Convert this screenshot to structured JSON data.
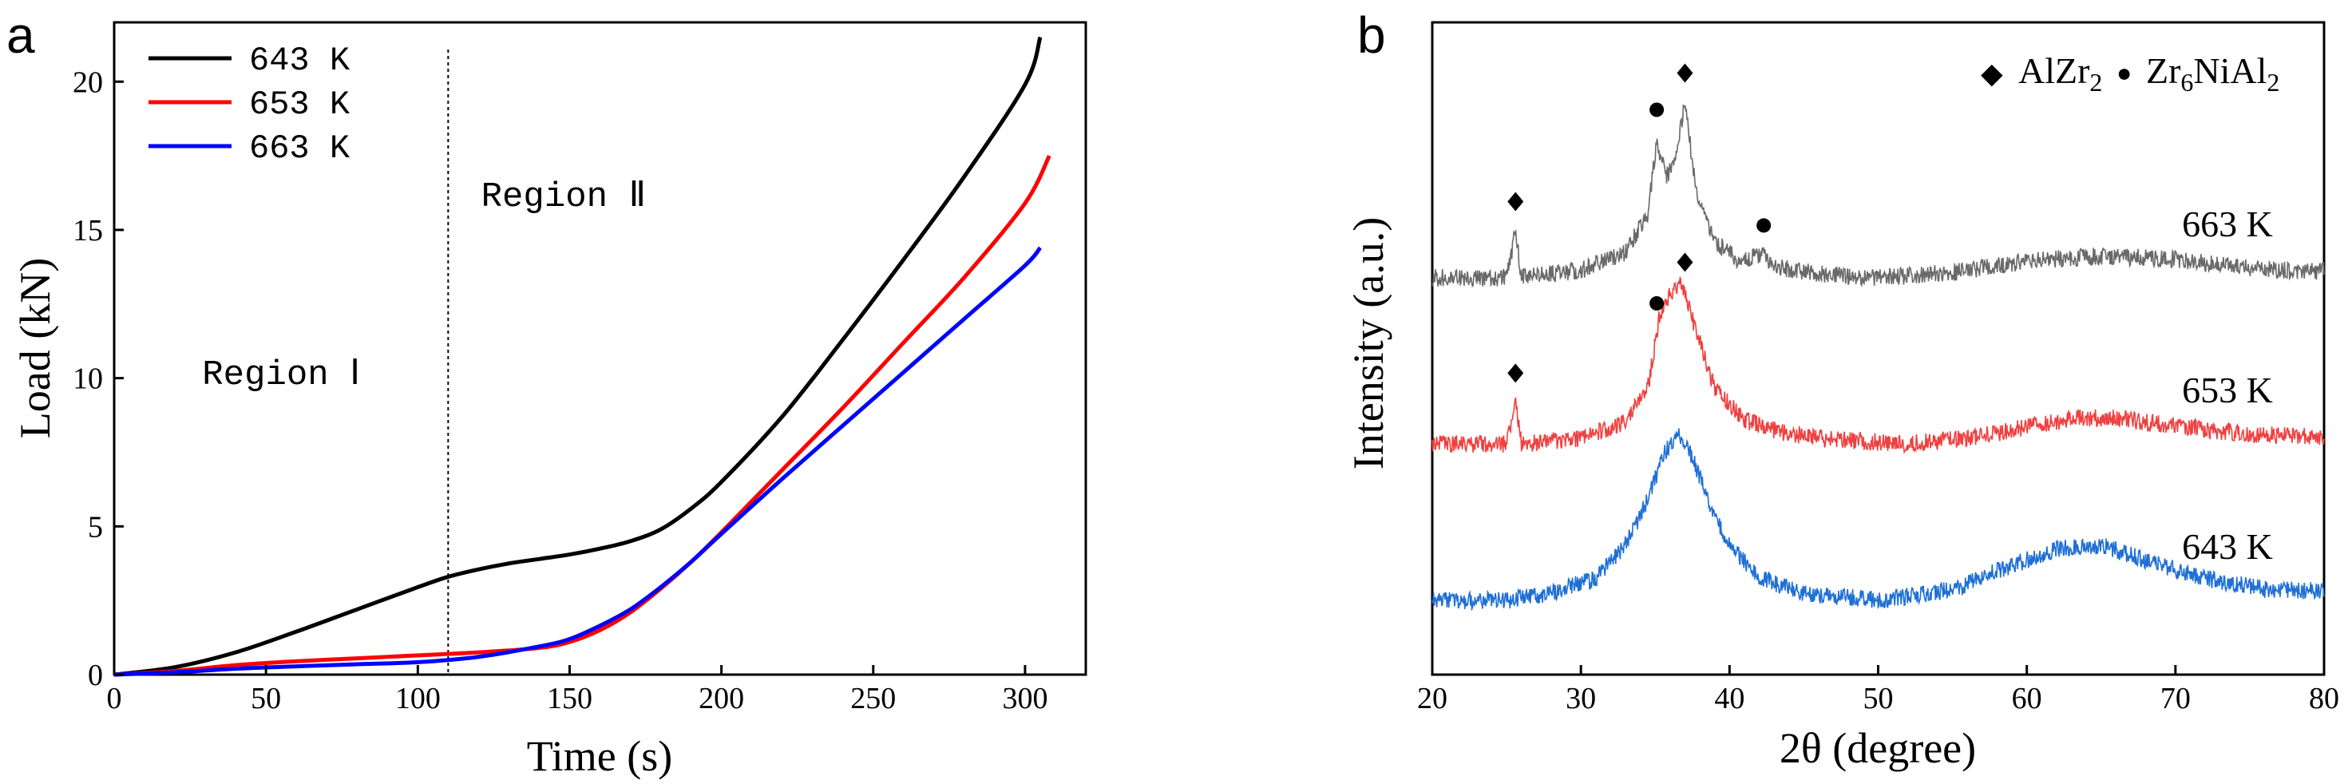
{
  "chart_data": [
    {
      "panel": "a",
      "type": "line",
      "title": "",
      "xlabel": "Time (s)",
      "ylabel": "Load (kN)",
      "xlim": [
        0,
        320
      ],
      "ylim": [
        0,
        22
      ],
      "xticks": [
        0,
        50,
        100,
        150,
        200,
        250,
        300
      ],
      "yticks": [
        0,
        5,
        10,
        15,
        20
      ],
      "grid": false,
      "legend": "top-left",
      "series": [
        {
          "name": "643 K",
          "color": "#000000",
          "x": [
            0,
            20,
            40,
            60,
            80,
            100,
            110,
            120,
            130,
            140,
            150,
            160,
            170,
            180,
            190,
            200,
            220,
            240,
            260,
            280,
            300,
            305
          ],
          "y": [
            0,
            0.25,
            0.75,
            1.45,
            2.2,
            2.95,
            3.3,
            3.55,
            3.75,
            3.9,
            4.05,
            4.25,
            4.5,
            4.9,
            5.6,
            6.5,
            8.7,
            11.3,
            14.0,
            16.8,
            19.9,
            21.5
          ]
        },
        {
          "name": "653 K",
          "color": "#ff0000",
          "x": [
            0,
            20,
            40,
            60,
            80,
            100,
            120,
            140,
            150,
            160,
            170,
            180,
            190,
            200,
            220,
            240,
            260,
            280,
            300,
            308
          ],
          "y": [
            0,
            0.12,
            0.32,
            0.45,
            0.55,
            0.65,
            0.75,
            0.9,
            1.1,
            1.5,
            2.1,
            2.9,
            3.8,
            4.8,
            6.9,
            9.0,
            11.2,
            13.4,
            15.9,
            17.5
          ]
        },
        {
          "name": "663 K",
          "color": "#0000ff",
          "x": [
            0,
            20,
            40,
            60,
            80,
            100,
            120,
            140,
            150,
            160,
            170,
            180,
            190,
            200,
            220,
            240,
            260,
            280,
            300,
            305
          ],
          "y": [
            0,
            0.08,
            0.2,
            0.28,
            0.35,
            0.42,
            0.6,
            0.95,
            1.2,
            1.65,
            2.2,
            2.95,
            3.8,
            4.75,
            6.6,
            8.4,
            10.2,
            12.0,
            13.8,
            14.4
          ]
        }
      ],
      "annotations": [
        {
          "text": "Region Ⅰ",
          "x": 55,
          "y": 9.8
        },
        {
          "text": "Region Ⅱ",
          "x": 148,
          "y": 15.8
        }
      ],
      "vline": {
        "x": 110,
        "style": "dotted"
      }
    },
    {
      "panel": "b",
      "type": "line",
      "title": "",
      "xlabel": "2θ (degree)",
      "ylabel": "Intensity (a.u.)",
      "xlim": [
        20,
        80
      ],
      "xticks": [
        20,
        30,
        40,
        50,
        60,
        70,
        80
      ],
      "yticks": [],
      "grid": false,
      "legend": "top-right",
      "legend_items": [
        {
          "marker": "diamond",
          "symbol": "◆",
          "label_main": "AlZr",
          "label_sub": "2"
        },
        {
          "marker": "circle",
          "symbol": "●",
          "label_main": "Zr",
          "label_sub1": "6",
          "label_mid": "NiAl",
          "label_sub2": "2"
        }
      ],
      "series": [
        {
          "name": "663 K",
          "color": "#696969",
          "offset": 2.0,
          "x": [
            20,
            25,
            25.6,
            26,
            30,
            33,
            34.5,
            35.1,
            35.7,
            36.2,
            37.0,
            37.8,
            39,
            40.5,
            42.3,
            43,
            46,
            50,
            55,
            60,
            65,
            70,
            75,
            80
          ],
          "y": [
            0.0,
            0.0,
            0.25,
            0.0,
            0.04,
            0.14,
            0.35,
            0.75,
            0.55,
            0.6,
            0.95,
            0.45,
            0.2,
            0.1,
            0.12,
            0.06,
            0.02,
            0.0,
            0.03,
            0.09,
            0.12,
            0.1,
            0.05,
            0.03
          ]
        },
        {
          "name": "653 K",
          "color": "#f04040",
          "offset": 1.0,
          "x": [
            20,
            25,
            25.6,
            26,
            30,
            33,
            34.5,
            35.3,
            36,
            36.8,
            37.8,
            39,
            41,
            44,
            48,
            52,
            56,
            60,
            63,
            66,
            70,
            75,
            80
          ],
          "y": [
            0.0,
            0.0,
            0.22,
            0.0,
            0.03,
            0.12,
            0.3,
            0.7,
            0.82,
            0.88,
            0.6,
            0.3,
            0.13,
            0.05,
            0.02,
            0.0,
            0.03,
            0.09,
            0.14,
            0.14,
            0.1,
            0.05,
            0.04
          ]
        },
        {
          "name": "643 K",
          "color": "#1f6fd6",
          "offset": 0.0,
          "x": [
            20,
            25,
            28,
            31,
            33,
            34.5,
            35.5,
            36.5,
            37.5,
            38.5,
            40,
            42,
            45,
            50,
            55,
            58,
            62,
            65,
            68,
            72,
            76,
            80
          ],
          "y": [
            0.0,
            0.0,
            0.04,
            0.12,
            0.3,
            0.55,
            0.78,
            0.92,
            0.78,
            0.55,
            0.3,
            0.12,
            0.04,
            0.0,
            0.06,
            0.16,
            0.28,
            0.3,
            0.22,
            0.12,
            0.06,
            0.05
          ]
        }
      ],
      "curve_labels": [
        "663 K",
        "653 K",
        "643 K"
      ],
      "peak_markers": [
        {
          "series": "663 K",
          "marker": "diamond",
          "x": 25.6
        },
        {
          "series": "663 K",
          "marker": "circle",
          "x": 35.1
        },
        {
          "series": "663 K",
          "marker": "diamond",
          "x": 37.0
        },
        {
          "series": "663 K",
          "marker": "circle",
          "x": 42.3
        },
        {
          "series": "653 K",
          "marker": "diamond",
          "x": 25.6
        },
        {
          "series": "653 K",
          "marker": "circle",
          "x": 35.1
        },
        {
          "series": "653 K",
          "marker": "diamond",
          "x": 37.0
        }
      ]
    }
  ]
}
